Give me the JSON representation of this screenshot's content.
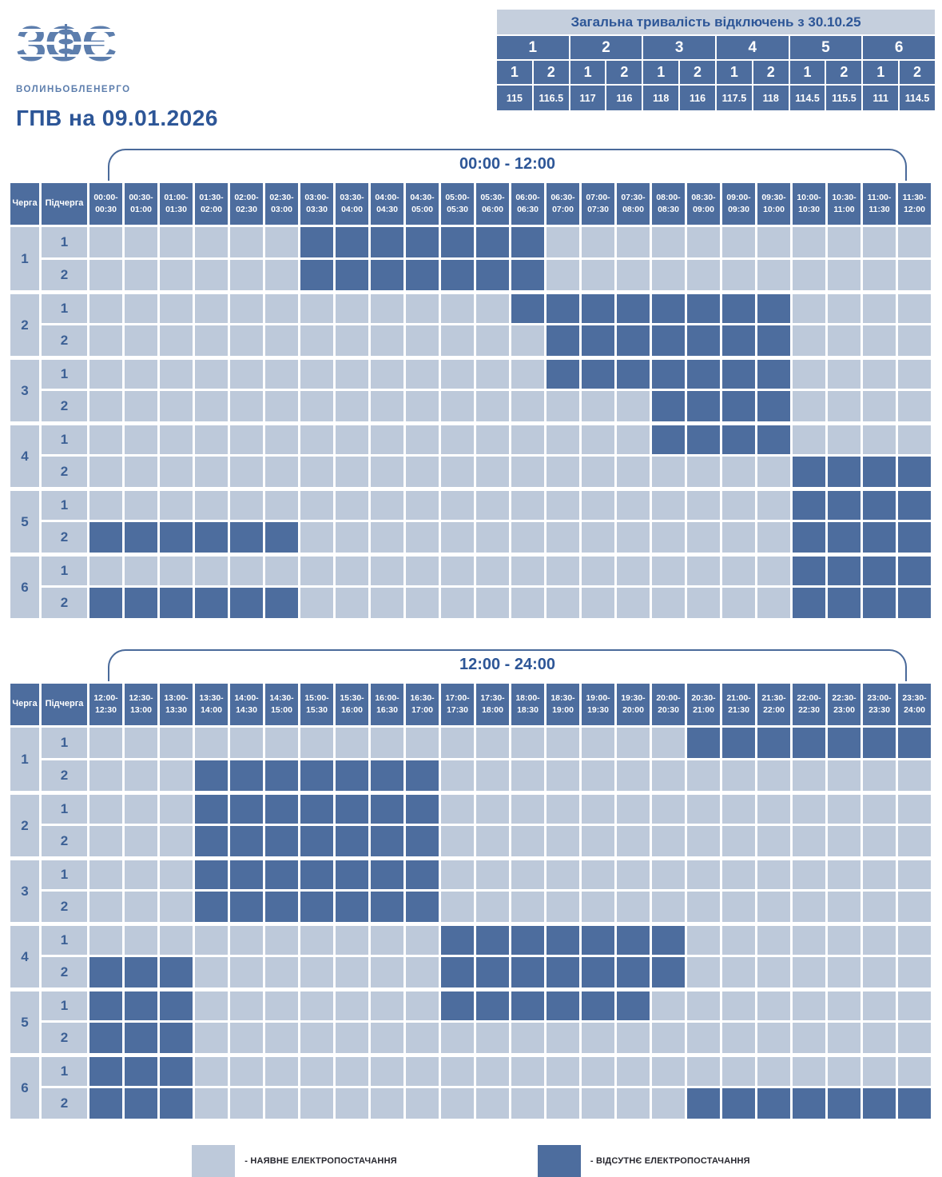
{
  "logo": {
    "emblem": "ЗОЄ",
    "company": "ВОЛИНЬОБЛЕНЕРГО"
  },
  "title": "ГПВ на 09.01.2026",
  "summary_table": {
    "title": "Загальна тривалість відключень з 30.10.25",
    "groups": [
      "1",
      "2",
      "3",
      "4",
      "5",
      "6"
    ],
    "subgroups": [
      "1",
      "2",
      "1",
      "2",
      "1",
      "2",
      "1",
      "2",
      "1",
      "2",
      "1",
      "2"
    ],
    "totals_hours": [
      "115",
      "116.5",
      "117",
      "116",
      "118",
      "116",
      "117.5",
      "118",
      "114.5",
      "115.5",
      "111",
      "114.5"
    ]
  },
  "schedule_headers": {
    "queue": "Черга",
    "subqueue": "Підчерга"
  },
  "legend": {
    "available_label": "- НАЯВНЕ ЕЛЕКТРОПОСТАЧАННЯ",
    "outage_label": "- ВІДСУТНЄ ЕЛЕКТРОПОСТАЧАННЯ"
  },
  "colors": {
    "available_cell": "#bdc9da",
    "outage_cell": "#4d6d9e",
    "header_bg": "#4d6d9e",
    "accent_text": "#2d5697",
    "logo_blue": "#5d7ead"
  },
  "chart_data": {
    "type": "heatmap",
    "title": "ГПВ на 09.01.2026",
    "cell_states": {
      "available": "наявне електропостачання",
      "outage": "відсутнє електропостачання"
    },
    "tables": [
      {
        "label": "00:00 - 12:00",
        "columns": [
          "00:00-00:30",
          "00:30-01:00",
          "01:00-01:30",
          "01:30-02:00",
          "02:00-02:30",
          "02:30-03:00",
          "03:00-03:30",
          "03:30-04:00",
          "04:00-04:30",
          "04:30-05:00",
          "05:00-05:30",
          "05:30-06:00",
          "06:00-06:30",
          "06:30-07:00",
          "07:00-07:30",
          "07:30-08:00",
          "08:00-08:30",
          "08:30-09:00",
          "09:00-09:30",
          "09:30-10:00",
          "10:00-10:30",
          "10:30-11:00",
          "11:00-11:30",
          "11:30-12:00"
        ],
        "rows": [
          {
            "queue": "1",
            "subqueue": "1",
            "outage_col_ranges": [
              [
                6,
                12
              ]
            ]
          },
          {
            "queue": "1",
            "subqueue": "2",
            "outage_col_ranges": [
              [
                6,
                12
              ]
            ]
          },
          {
            "queue": "2",
            "subqueue": "1",
            "outage_col_ranges": [
              [
                12,
                19
              ]
            ]
          },
          {
            "queue": "2",
            "subqueue": "2",
            "outage_col_ranges": [
              [
                13,
                19
              ]
            ]
          },
          {
            "queue": "3",
            "subqueue": "1",
            "outage_col_ranges": [
              [
                13,
                19
              ]
            ]
          },
          {
            "queue": "3",
            "subqueue": "2",
            "outage_col_ranges": [
              [
                16,
                19
              ]
            ]
          },
          {
            "queue": "4",
            "subqueue": "1",
            "outage_col_ranges": [
              [
                16,
                19
              ]
            ]
          },
          {
            "queue": "4",
            "subqueue": "2",
            "outage_col_ranges": [
              [
                20,
                23
              ]
            ]
          },
          {
            "queue": "5",
            "subqueue": "1",
            "outage_col_ranges": [
              [
                20,
                23
              ]
            ]
          },
          {
            "queue": "5",
            "subqueue": "2",
            "outage_col_ranges": [
              [
                0,
                5
              ],
              [
                20,
                23
              ]
            ]
          },
          {
            "queue": "6",
            "subqueue": "1",
            "outage_col_ranges": [
              [
                20,
                23
              ]
            ]
          },
          {
            "queue": "6",
            "subqueue": "2",
            "outage_col_ranges": [
              [
                0,
                5
              ],
              [
                20,
                23
              ]
            ]
          }
        ]
      },
      {
        "label": "12:00 - 24:00",
        "columns": [
          "12:00-12:30",
          "12:30-13:00",
          "13:00-13:30",
          "13:30-14:00",
          "14:00-14:30",
          "14:30-15:00",
          "15:00-15:30",
          "15:30-16:00",
          "16:00-16:30",
          "16:30-17:00",
          "17:00-17:30",
          "17:30-18:00",
          "18:00-18:30",
          "18:30-19:00",
          "19:00-19:30",
          "19:30-20:00",
          "20:00-20:30",
          "20:30-21:00",
          "21:00-21:30",
          "21:30-22:00",
          "22:00-22:30",
          "22:30-23:00",
          "23:00-23:30",
          "23:30-24:00"
        ],
        "rows": [
          {
            "queue": "1",
            "subqueue": "1",
            "outage_col_ranges": [
              [
                17,
                23
              ]
            ]
          },
          {
            "queue": "1",
            "subqueue": "2",
            "outage_col_ranges": [
              [
                3,
                9
              ]
            ]
          },
          {
            "queue": "2",
            "subqueue": "1",
            "outage_col_ranges": [
              [
                3,
                9
              ]
            ]
          },
          {
            "queue": "2",
            "subqueue": "2",
            "outage_col_ranges": [
              [
                3,
                9
              ]
            ]
          },
          {
            "queue": "3",
            "subqueue": "1",
            "outage_col_ranges": [
              [
                3,
                9
              ]
            ]
          },
          {
            "queue": "3",
            "subqueue": "2",
            "outage_col_ranges": [
              [
                3,
                9
              ]
            ]
          },
          {
            "queue": "4",
            "subqueue": "1",
            "outage_col_ranges": [
              [
                10,
                16
              ]
            ]
          },
          {
            "queue": "4",
            "subqueue": "2",
            "outage_col_ranges": [
              [
                0,
                2
              ],
              [
                10,
                16
              ]
            ]
          },
          {
            "queue": "5",
            "subqueue": "1",
            "outage_col_ranges": [
              [
                0,
                2
              ],
              [
                10,
                15
              ]
            ]
          },
          {
            "queue": "5",
            "subqueue": "2",
            "outage_col_ranges": [
              [
                0,
                2
              ]
            ]
          },
          {
            "queue": "6",
            "subqueue": "1",
            "outage_col_ranges": [
              [
                0,
                2
              ]
            ]
          },
          {
            "queue": "6",
            "subqueue": "2",
            "outage_col_ranges": [
              [
                0,
                2
              ],
              [
                17,
                23
              ]
            ]
          }
        ]
      }
    ]
  }
}
